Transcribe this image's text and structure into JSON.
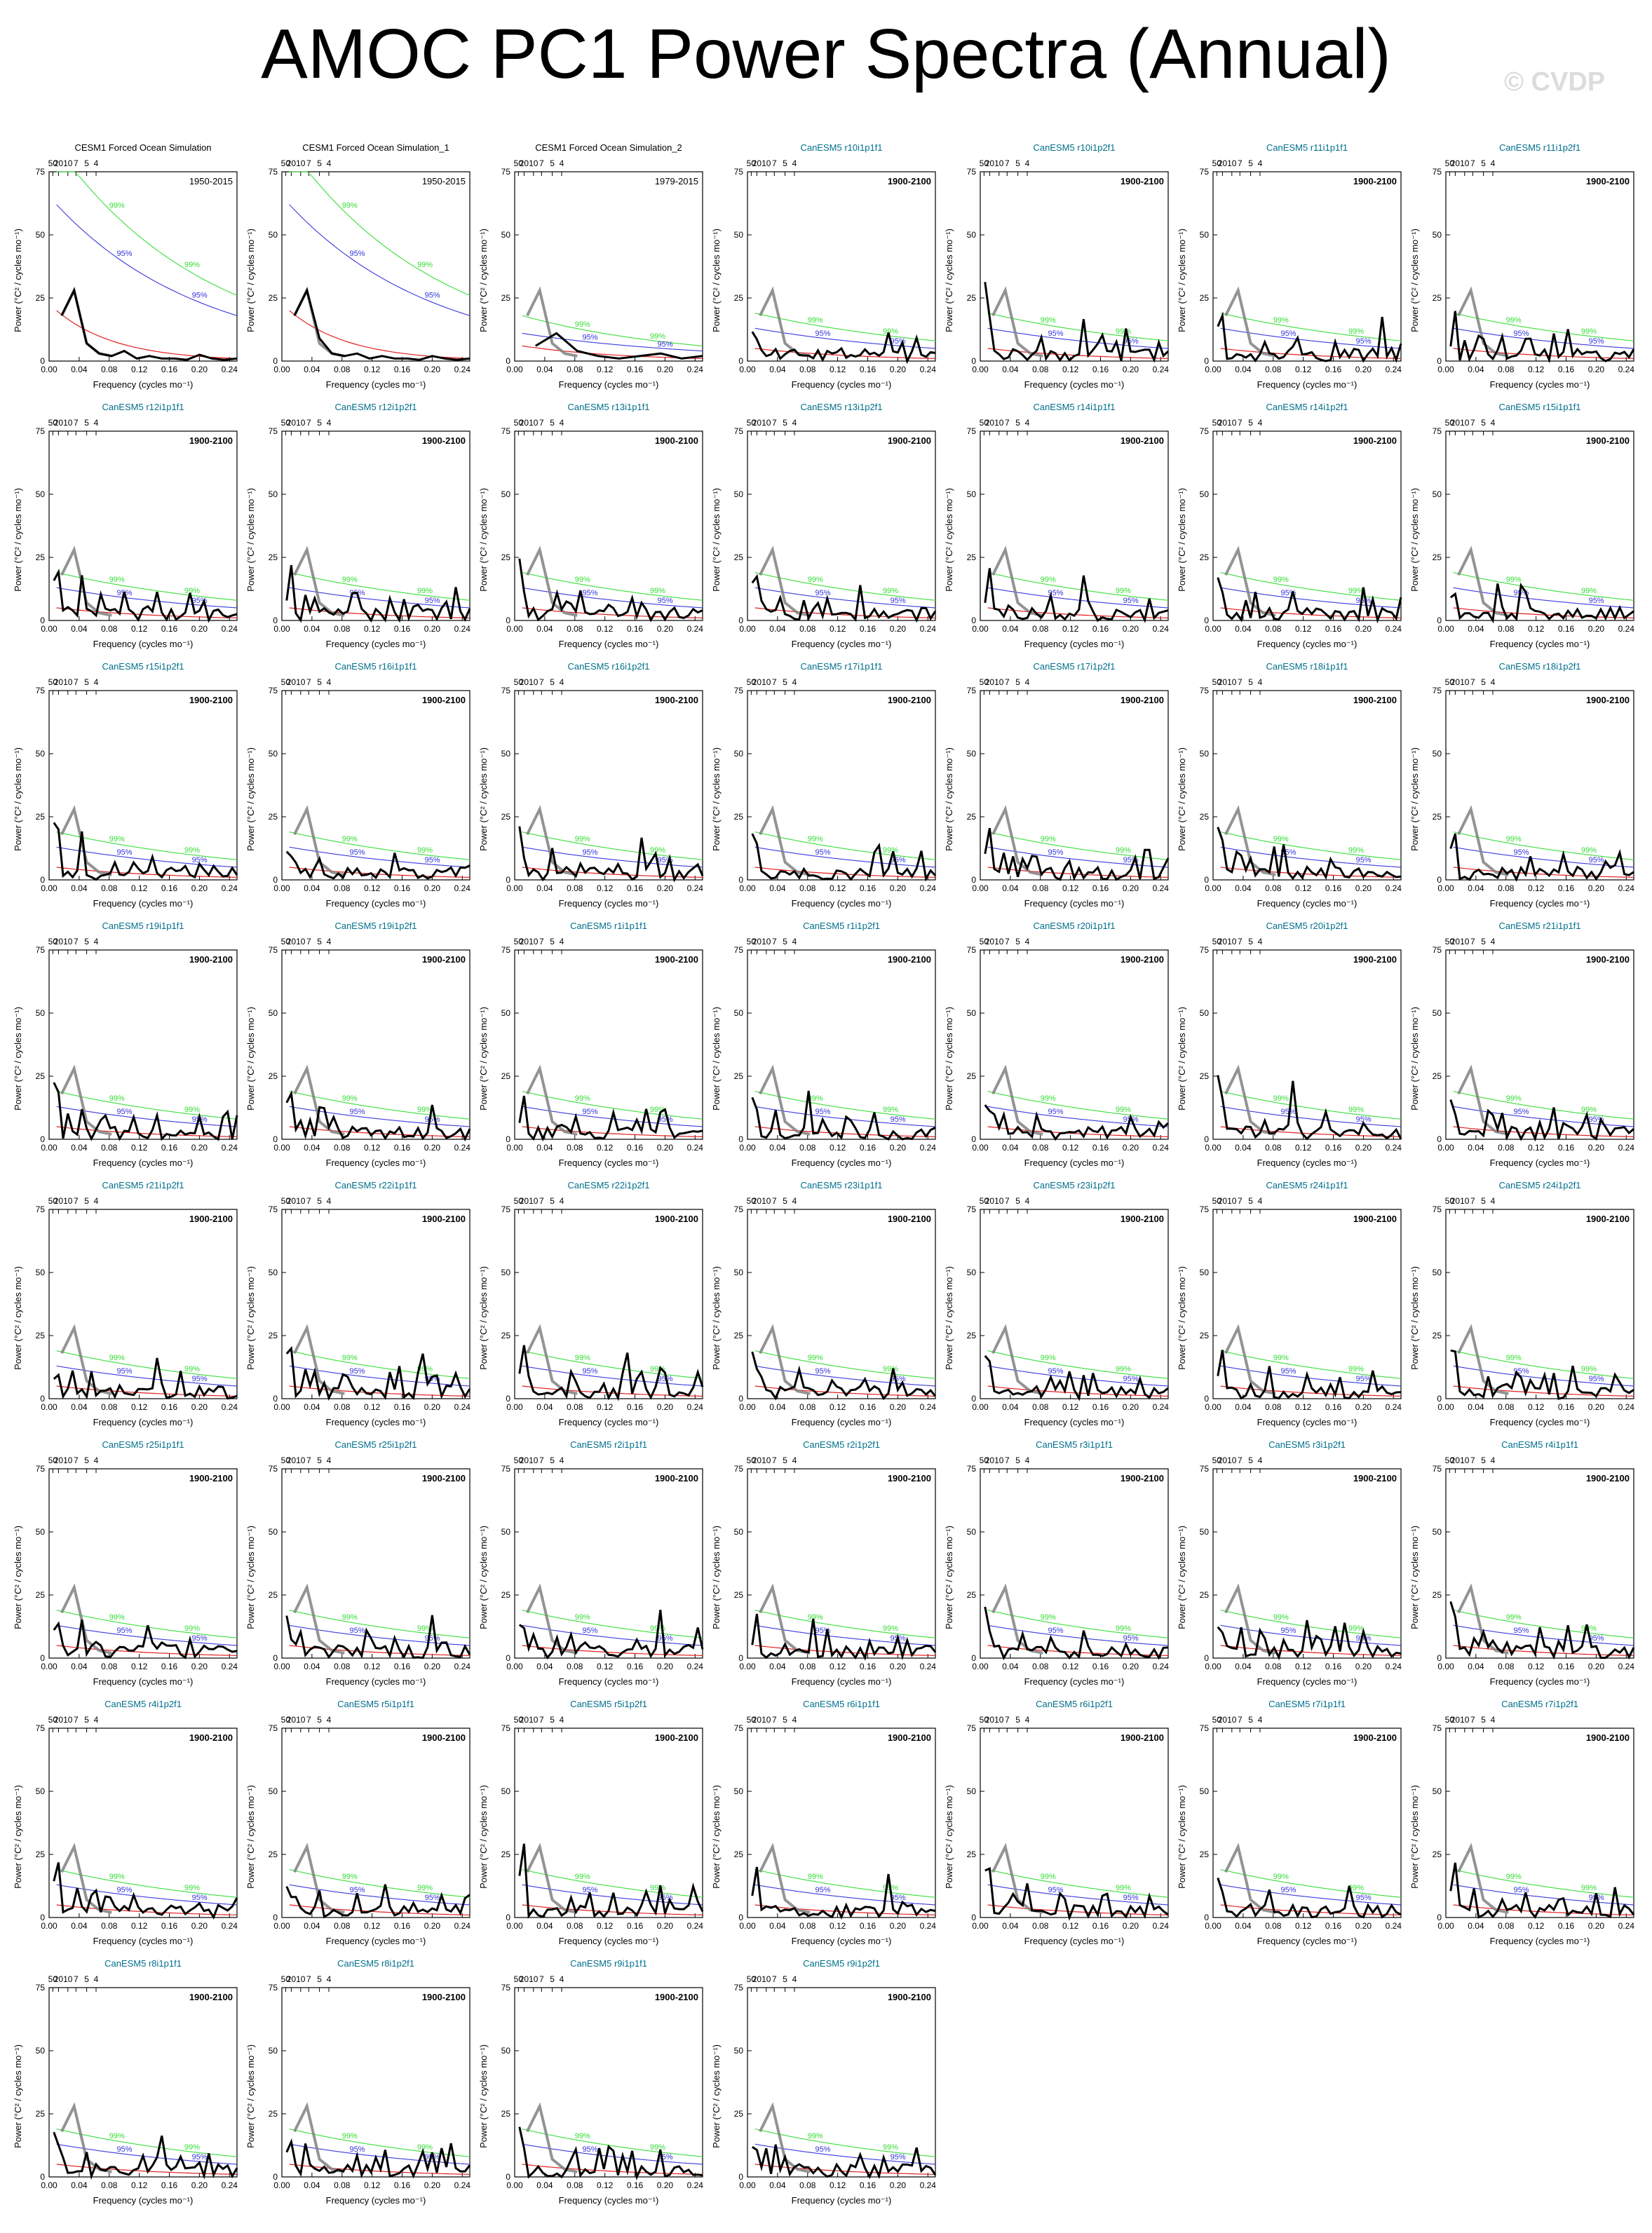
{
  "page": {
    "title": "AMOC PC1 Power Spectra (Annual)",
    "watermark": "© CVDP"
  },
  "axes": {
    "xlabel": "Frequency (cycles mo⁻¹)",
    "ylabel": "Power (°C² / cycles mo⁻¹)",
    "xlim": [
      0,
      0.25
    ],
    "ylim": [
      0,
      75
    ],
    "x_ticks": [
      "0.00",
      "0.04",
      "0.08",
      "0.12",
      "0.16",
      "0.20",
      "0.24"
    ],
    "y_ticks": [
      "0",
      "25",
      "50",
      "75"
    ],
    "top_ticks": [
      "50",
      "20",
      "10",
      "7",
      "5",
      "4"
    ],
    "sig_labels": [
      "99%",
      "95%"
    ]
  },
  "colors": {
    "spectrum": "#000000",
    "ref_spectrum": "#808080",
    "red_noise": "#e32020",
    "sig95": "#3333dd",
    "sig99": "#33dd33",
    "obs_title": "#000000",
    "model_title": "#006f8c"
  },
  "chart_data": [
    {
      "type": "line",
      "title": "CESM1 Forced Ocean Simulation",
      "period": "1950-2015",
      "x": [
        0.0167,
        0.0333,
        0.05,
        0.0667,
        0.0833,
        0.1,
        0.1167,
        0.1333,
        0.15,
        0.1667,
        0.1833,
        0.2,
        0.2167,
        0.2333,
        0.25
      ],
      "series": [
        {
          "values": [
            18,
            28,
            7,
            3,
            2,
            4,
            1,
            2,
            1,
            1,
            0.5,
            2.5,
            1,
            0.5,
            1
          ]
        }
      ],
      "sig95": [
        62,
        18
      ],
      "sig99": [
        85,
        26
      ],
      "rednoise": [
        20,
        1
      ]
    },
    {
      "type": "line",
      "title": "CESM1 Forced Ocean Simulation_1",
      "period": "1950-2015",
      "x": [
        0.0167,
        0.0333,
        0.05,
        0.0667,
        0.0833,
        0.1,
        0.1167,
        0.1333,
        0.15,
        0.1667,
        0.1833,
        0.2,
        0.2167,
        0.2333,
        0.25
      ],
      "series": [
        {
          "values": [
            18,
            28,
            9,
            3,
            2,
            3,
            1,
            2,
            1,
            1,
            0.5,
            2,
            1,
            0.5,
            1
          ]
        }
      ],
      "sig95": [
        62,
        18
      ],
      "sig99": [
        85,
        26
      ],
      "rednoise": [
        20,
        1
      ]
    },
    {
      "type": "line",
      "title": "CESM1 Forced Ocean Simulation_2",
      "period": "1979-2015",
      "x": [
        0.0278,
        0.0556,
        0.0833,
        0.1111,
        0.1389,
        0.1667,
        0.1944,
        0.2222,
        0.25
      ],
      "series": [
        {
          "values": [
            6,
            11,
            4,
            2,
            1,
            2,
            3,
            1,
            2
          ]
        }
      ],
      "sig95": [
        11,
        4
      ],
      "sig99": [
        18,
        6
      ],
      "rednoise": [
        6,
        1
      ]
    },
    {
      "title": "CanESM5 r10i1p1f1",
      "period": "1900-2100"
    },
    {
      "title": "CanESM5 r10i1p2f1",
      "period": "1900-2100"
    },
    {
      "title": "CanESM5 r11i1p1f1",
      "period": "1900-2100"
    },
    {
      "title": "CanESM5 r11i1p2f1",
      "period": "1900-2100"
    },
    {
      "title": "CanESM5 r12i1p1f1",
      "period": "1900-2100"
    },
    {
      "title": "CanESM5 r12i1p2f1",
      "period": "1900-2100"
    },
    {
      "title": "CanESM5 r13i1p1f1",
      "period": "1900-2100"
    },
    {
      "title": "CanESM5 r13i1p2f1",
      "period": "1900-2100"
    },
    {
      "title": "CanESM5 r14i1p1f1",
      "period": "1900-2100"
    },
    {
      "title": "CanESM5 r14i1p2f1",
      "period": "1900-2100"
    },
    {
      "title": "CanESM5 r15i1p1f1",
      "period": "1900-2100"
    },
    {
      "title": "CanESM5 r15i1p2f1",
      "period": "1900-2100"
    },
    {
      "title": "CanESM5 r16i1p1f1",
      "period": "1900-2100"
    },
    {
      "title": "CanESM5 r16i1p2f1",
      "period": "1900-2100"
    },
    {
      "title": "CanESM5 r17i1p1f1",
      "period": "1900-2100"
    },
    {
      "title": "CanESM5 r17i1p2f1",
      "period": "1900-2100"
    },
    {
      "title": "CanESM5 r18i1p1f1",
      "period": "1900-2100"
    },
    {
      "title": "CanESM5 r18i1p2f1",
      "period": "1900-2100"
    },
    {
      "title": "CanESM5 r19i1p1f1",
      "period": "1900-2100"
    },
    {
      "title": "CanESM5 r19i1p2f1",
      "period": "1900-2100"
    },
    {
      "title": "CanESM5 r1i1p1f1",
      "period": "1900-2100"
    },
    {
      "title": "CanESM5 r1i1p2f1",
      "period": "1900-2100"
    },
    {
      "title": "CanESM5 r20i1p1f1",
      "period": "1900-2100"
    },
    {
      "title": "CanESM5 r20i1p2f1",
      "period": "1900-2100"
    },
    {
      "title": "CanESM5 r21i1p1f1",
      "period": "1900-2100"
    },
    {
      "title": "CanESM5 r21i1p2f1",
      "period": "1900-2100"
    },
    {
      "title": "CanESM5 r22i1p1f1",
      "period": "1900-2100"
    },
    {
      "title": "CanESM5 r22i1p2f1",
      "period": "1900-2100"
    },
    {
      "title": "CanESM5 r23i1p1f1",
      "period": "1900-2100"
    },
    {
      "title": "CanESM5 r23i1p2f1",
      "period": "1900-2100"
    },
    {
      "title": "CanESM5 r24i1p1f1",
      "period": "1900-2100"
    },
    {
      "title": "CanESM5 r24i1p2f1",
      "period": "1900-2100"
    },
    {
      "title": "CanESM5 r25i1p1f1",
      "period": "1900-2100"
    },
    {
      "title": "CanESM5 r25i1p2f1",
      "period": "1900-2100"
    },
    {
      "title": "CanESM5 r2i1p1f1",
      "period": "1900-2100"
    },
    {
      "title": "CanESM5 r2i1p2f1",
      "period": "1900-2100"
    },
    {
      "title": "CanESM5 r3i1p1f1",
      "period": "1900-2100"
    },
    {
      "title": "CanESM5 r3i1p2f1",
      "period": "1900-2100"
    },
    {
      "title": "CanESM5 r4i1p1f1",
      "period": "1900-2100"
    },
    {
      "title": "CanESM5 r4i1p2f1",
      "period": "1900-2100"
    },
    {
      "title": "CanESM5 r5i1p1f1",
      "period": "1900-2100"
    },
    {
      "title": "CanESM5 r5i1p2f1",
      "period": "1900-2100"
    },
    {
      "title": "CanESM5 r6i1p1f1",
      "period": "1900-2100"
    },
    {
      "title": "CanESM5 r6i1p2f1",
      "period": "1900-2100"
    },
    {
      "title": "CanESM5 r7i1p1f1",
      "period": "1900-2100"
    },
    {
      "title": "CanESM5 r7i1p2f1",
      "period": "1900-2100"
    },
    {
      "title": "CanESM5 r8i1p1f1",
      "period": "1900-2100"
    },
    {
      "title": "CanESM5 r8i1p2f1",
      "period": "1900-2100"
    },
    {
      "title": "CanESM5 r9i1p1f1",
      "period": "1900-2100"
    },
    {
      "title": "CanESM5 r9i1p2f1",
      "period": "1900-2100"
    }
  ]
}
